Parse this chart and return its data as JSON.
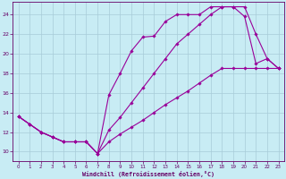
{
  "xlabel": "Windchill (Refroidissement éolien,°C)",
  "bg_color": "#c8ecf4",
  "grid_color": "#a8ccd8",
  "line_color": "#990099",
  "spine_color": "#660066",
  "xlim": [
    -0.5,
    23.5
  ],
  "ylim": [
    9.0,
    25.3
  ],
  "yticks": [
    10,
    12,
    14,
    16,
    18,
    20,
    22,
    24
  ],
  "xticks": [
    0,
    1,
    2,
    3,
    4,
    5,
    6,
    7,
    8,
    9,
    10,
    11,
    12,
    13,
    14,
    15,
    16,
    17,
    18,
    19,
    20,
    21,
    22,
    23
  ],
  "curve1_x": [
    0,
    1,
    2,
    3,
    4,
    5,
    6,
    7,
    8,
    9,
    10,
    11,
    12,
    13,
    14,
    15,
    16,
    17,
    18,
    19,
    20,
    21,
    22,
    23
  ],
  "curve1_y": [
    13.6,
    12.8,
    12.0,
    11.5,
    11.0,
    11.0,
    11.0,
    9.8,
    11.0,
    11.8,
    12.5,
    13.2,
    14.0,
    14.8,
    15.5,
    16.2,
    17.0,
    17.8,
    18.5,
    18.5,
    18.5,
    18.5,
    18.5,
    18.5
  ],
  "curve2_x": [
    0,
    1,
    2,
    3,
    4,
    5,
    6,
    7,
    8,
    9,
    10,
    11,
    12,
    13,
    14,
    15,
    16,
    17,
    18,
    19,
    20,
    21,
    22,
    23
  ],
  "curve2_y": [
    13.6,
    12.8,
    12.0,
    11.5,
    11.0,
    11.0,
    11.0,
    9.8,
    12.2,
    13.5,
    15.0,
    16.5,
    18.0,
    19.5,
    21.0,
    22.0,
    23.0,
    24.0,
    24.8,
    24.8,
    24.8,
    22.0,
    19.5,
    18.5
  ],
  "curve3_x": [
    0,
    1,
    2,
    3,
    4,
    5,
    6,
    7,
    8,
    9,
    10,
    11,
    12,
    13,
    14,
    15,
    16,
    17,
    18,
    19,
    20,
    21,
    22,
    23
  ],
  "curve3_y": [
    13.6,
    12.8,
    12.0,
    11.5,
    11.0,
    11.0,
    11.0,
    9.8,
    15.8,
    18.0,
    20.3,
    21.7,
    21.8,
    23.3,
    24.0,
    24.0,
    24.0,
    24.8,
    24.8,
    24.8,
    23.8,
    19.0,
    19.5,
    18.5
  ]
}
